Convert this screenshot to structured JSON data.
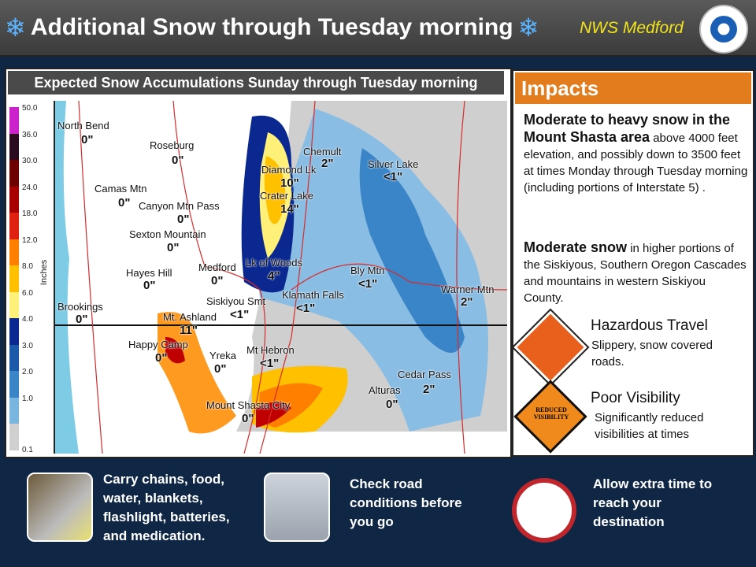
{
  "header": {
    "title": "Additional Snow through Tuesday morning",
    "office": "NWS Medford",
    "logo_text": "NATIONAL WEATHER SERVICE",
    "icon": "snowflake-icon"
  },
  "map": {
    "title": "Expected Snow Accumulations Sunday through Tuesday morning",
    "legend": {
      "unit": "Inches",
      "levels": [
        "50.0",
        "36.0",
        "30.0",
        "24.0",
        "18.0",
        "12.0",
        "8.0",
        "6.0",
        "4.0",
        "3.0",
        "2.0",
        "1.0",
        "0.1"
      ],
      "colors": [
        "#cc22cc",
        "#2a0a1e",
        "#6e0000",
        "#a80000",
        "#e02010",
        "#ff7f00",
        "#ffc000",
        "#fff07a",
        "#0a2890",
        "#1a5aa8",
        "#3a85c8",
        "#7ab5e0",
        "#d0d0d0"
      ]
    },
    "locations": [
      {
        "name": "North Bend",
        "value": "0\""
      },
      {
        "name": "Roseburg",
        "value": "0\""
      },
      {
        "name": "Camas Mtn",
        "value": "0\""
      },
      {
        "name": "Canyon Mtn Pass",
        "value": "0\""
      },
      {
        "name": "Sexton Mountain",
        "value": "0\""
      },
      {
        "name": "Hayes Hill",
        "value": "0\""
      },
      {
        "name": "Medford",
        "value": "0\""
      },
      {
        "name": "Lk of Woods",
        "value": "4\""
      },
      {
        "name": "Diamond Lk",
        "value": "10\""
      },
      {
        "name": "Crater Lake",
        "value": "14\""
      },
      {
        "name": "Chemult",
        "value": "2\""
      },
      {
        "name": "Silver Lake",
        "value": "<1\""
      },
      {
        "name": "Bly Mtn",
        "value": "<1\""
      },
      {
        "name": "Warner Mtn",
        "value": "2\""
      },
      {
        "name": "Klamath Falls",
        "value": "<1\""
      },
      {
        "name": "Siskiyou Smt",
        "value": "<1\""
      },
      {
        "name": "Brookings",
        "value": "0\""
      },
      {
        "name": "Mt. Ashland",
        "value": "11\""
      },
      {
        "name": "Happy Camp",
        "value": "0\""
      },
      {
        "name": "Yreka",
        "value": "0\""
      },
      {
        "name": "Mt Hebron",
        "value": "<1\""
      },
      {
        "name": "Cedar Pass",
        "value": "2\""
      },
      {
        "name": "Alturas",
        "value": "0\""
      },
      {
        "name": "Mount Shasta City",
        "value": "0\""
      }
    ]
  },
  "impacts": {
    "title": "Impacts",
    "p1_bold": "Moderate to heavy snow in the Mount Shasta area",
    "p1_text": " above 4000 feet elevation, and possibly down to 3500 feet at times Monday through Tuesday morning (including portions of Interstate 5) .",
    "p2_bold": "Moderate snow",
    "p2_text": " in higher portions of the Siskiyous, Southern Oregon Cascades and mountains in western Siskiyou County.",
    "hazards": [
      {
        "title": "Hazardous Travel",
        "text": "Slippery, snow covered roads.",
        "sign_color": "#e8601c"
      },
      {
        "title": "Poor Visibility",
        "text": "Significantly reduced visibilities at times",
        "sign_text": "REDUCED VISIBILITY",
        "sign_color": "#f08a1c"
      }
    ]
  },
  "tips": [
    {
      "text": "Carry chains, food, water, blankets, flashlight, batteries, and medication.",
      "icon": "tire-chains-icon"
    },
    {
      "text": "Check road conditions before you go",
      "icon": "snowy-road-icon"
    },
    {
      "text": "Allow extra time to reach your destination",
      "icon": "clock-icon"
    }
  ]
}
